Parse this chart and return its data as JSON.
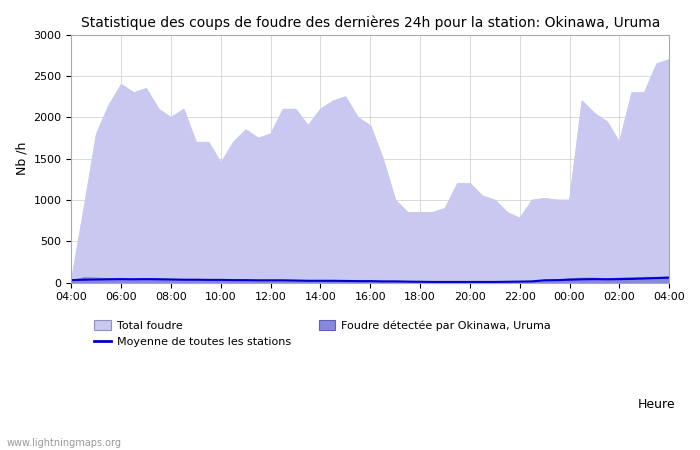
{
  "title": "Statistique des coups de foudre des dernières 24h pour la station: Okinawa, Uruma",
  "xlabel": "Heure",
  "ylabel": "Nb /h",
  "ylim": [
    0,
    3000
  ],
  "xlim": [
    0,
    24
  ],
  "xtick_labels": [
    "04:00",
    "06:00",
    "08:00",
    "10:00",
    "12:00",
    "14:00",
    "16:00",
    "18:00",
    "20:00",
    "22:00",
    "00:00",
    "02:00",
    "04:00"
  ],
  "xtick_positions": [
    0,
    2,
    4,
    6,
    8,
    10,
    12,
    14,
    16,
    18,
    20,
    22,
    24
  ],
  "ytick_positions": [
    0,
    500,
    1000,
    1500,
    2000,
    2500,
    3000
  ],
  "background_color": "#ffffff",
  "plot_bg_color": "#ffffff",
  "grid_color": "#cccccc",
  "watermark": "www.lightningmaps.org",
  "total_fill_color": "#c8c8f0",
  "detected_fill_color": "#8888dd",
  "mean_line_color": "#0000cc",
  "legend_labels": [
    "Total foudre",
    "Moyenne de toutes les stations",
    "Foudre détectée par Okinawa, Uruma"
  ],
  "total_x": [
    0,
    0.5,
    1.0,
    1.5,
    2.0,
    2.5,
    3.0,
    3.5,
    4.0,
    4.5,
    5.0,
    5.5,
    6.0,
    6.5,
    7.0,
    7.5,
    8.0,
    8.5,
    9.0,
    9.5,
    10.0,
    10.5,
    11.0,
    11.5,
    12.0,
    12.5,
    13.0,
    13.5,
    14.0,
    14.5,
    15.0,
    15.5,
    16.0,
    16.5,
    17.0,
    17.5,
    18.0,
    18.5,
    19.0,
    19.5,
    20.0,
    20.5,
    21.0,
    21.5,
    22.0,
    22.5,
    23.0,
    23.5,
    24.0
  ],
  "total_y": [
    30,
    900,
    1800,
    2150,
    2400,
    2300,
    2350,
    2100,
    2000,
    2100,
    1700,
    1700,
    1450,
    1700,
    1850,
    1750,
    1800,
    2100,
    2100,
    1900,
    2100,
    2200,
    2250,
    2000,
    1900,
    1500,
    1000,
    850,
    850,
    850,
    900,
    1200,
    1200,
    1050,
    1000,
    850,
    780,
    1000,
    1020,
    1000,
    1000,
    2200,
    2050,
    1950,
    1700,
    2300,
    2300,
    2650,
    2700
  ],
  "detected_x": [
    0,
    0.5,
    1.0,
    1.5,
    2.0,
    2.5,
    3.0,
    3.5,
    4.0,
    4.5,
    5.0,
    5.5,
    6.0,
    6.5,
    7.0,
    7.5,
    8.0,
    8.5,
    9.0,
    9.5,
    10.0,
    10.5,
    11.0,
    11.5,
    12.0,
    12.5,
    13.0,
    13.5,
    14.0,
    14.5,
    15.0,
    15.5,
    16.0,
    16.5,
    17.0,
    17.5,
    18.0,
    18.5,
    19.0,
    19.5,
    20.0,
    20.5,
    21.0,
    21.5,
    22.0,
    22.5,
    23.0,
    23.5,
    24.0
  ],
  "detected_y": [
    25,
    60,
    55,
    50,
    45,
    45,
    50,
    45,
    40,
    40,
    35,
    35,
    30,
    30,
    30,
    25,
    25,
    25,
    20,
    20,
    20,
    20,
    20,
    20,
    15,
    15,
    15,
    10,
    10,
    10,
    10,
    10,
    10,
    10,
    10,
    10,
    10,
    15,
    30,
    30,
    50,
    55,
    55,
    50,
    55,
    60,
    65,
    65,
    70
  ],
  "mean_x": [
    0,
    0.5,
    1.0,
    1.5,
    2.0,
    2.5,
    3.0,
    3.5,
    4.0,
    4.5,
    5.0,
    5.5,
    6.0,
    6.5,
    7.0,
    7.5,
    8.0,
    8.5,
    9.0,
    9.5,
    10.0,
    10.5,
    11.0,
    11.5,
    12.0,
    12.5,
    13.0,
    13.5,
    14.0,
    14.5,
    15.0,
    15.5,
    16.0,
    16.5,
    17.0,
    17.5,
    18.0,
    18.5,
    19.0,
    19.5,
    20.0,
    20.5,
    21.0,
    21.5,
    22.0,
    22.5,
    23.0,
    23.5,
    24.0
  ],
  "mean_y": [
    30,
    35,
    38,
    40,
    42,
    40,
    42,
    40,
    38,
    35,
    35,
    33,
    33,
    30,
    30,
    28,
    28,
    28,
    25,
    22,
    22,
    22,
    20,
    18,
    18,
    15,
    15,
    12,
    10,
    8,
    8,
    8,
    8,
    8,
    8,
    10,
    12,
    15,
    28,
    30,
    35,
    40,
    42,
    40,
    42,
    45,
    50,
    55,
    60
  ]
}
